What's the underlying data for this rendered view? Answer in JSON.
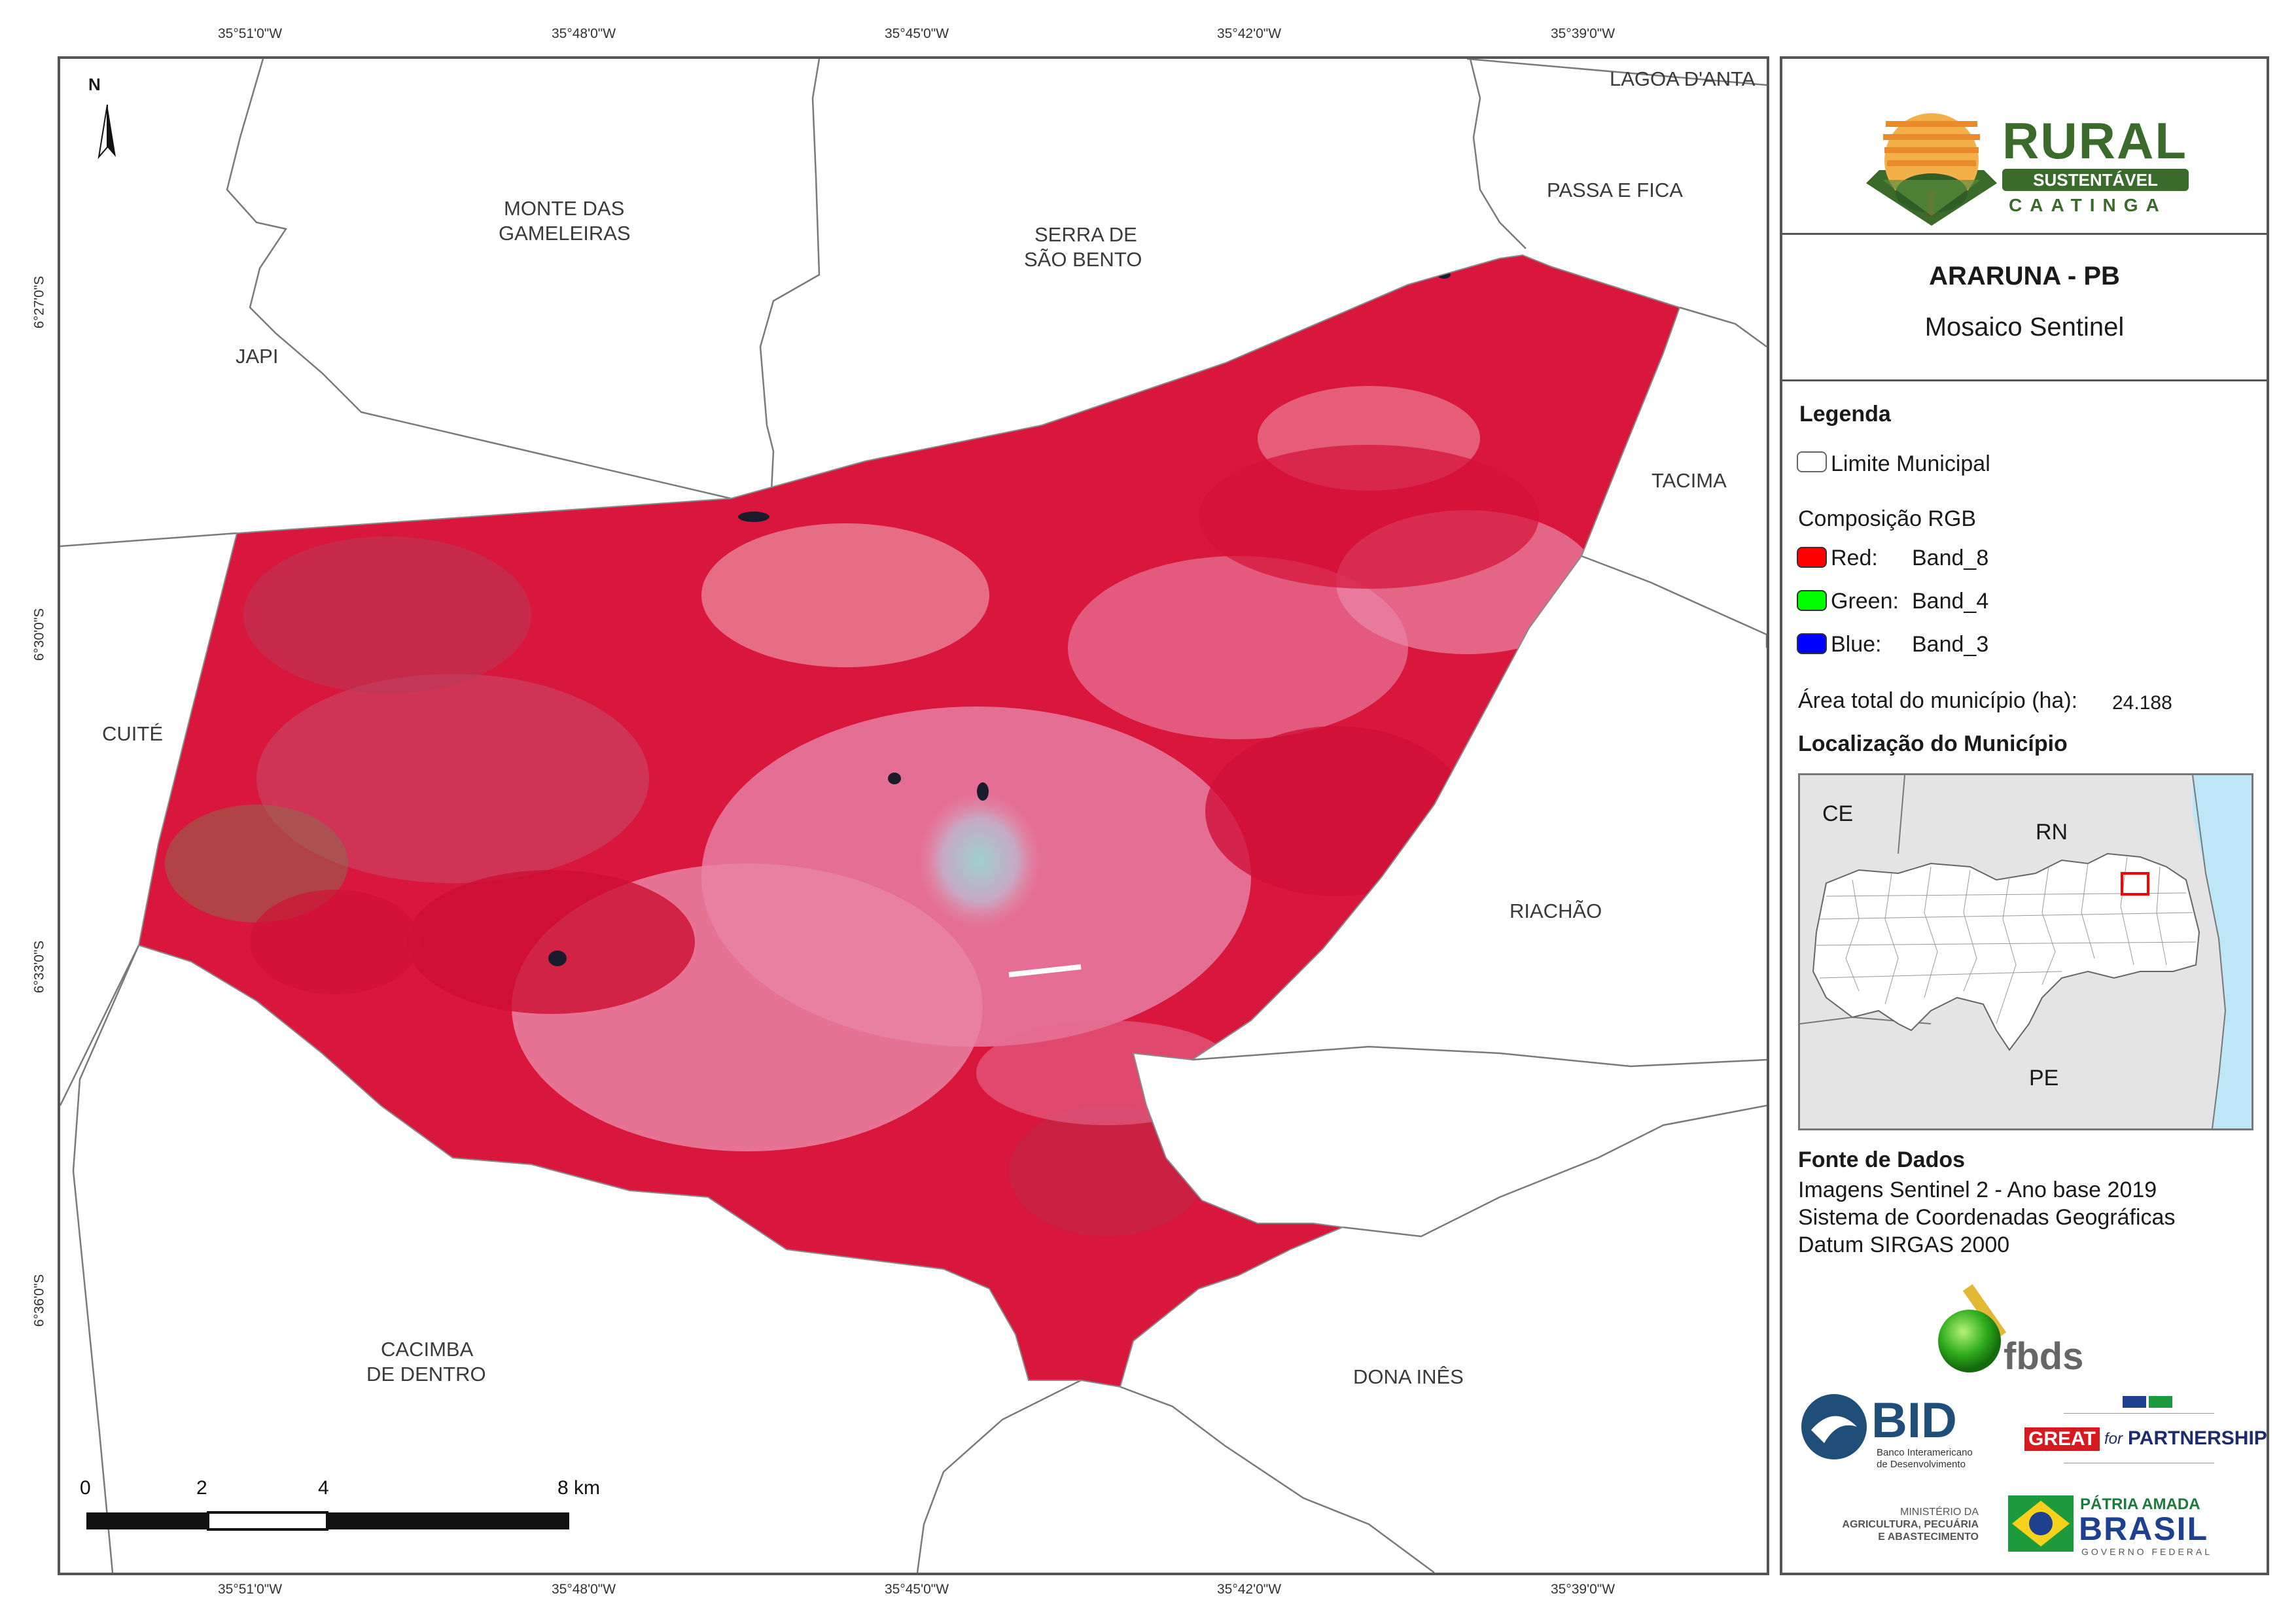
{
  "map": {
    "north_arrow_label": "N",
    "top_coords": [
      "35°51'0\"W",
      "35°48'0\"W",
      "35°45'0\"W",
      "35°42'0\"W",
      "35°39'0\"W"
    ],
    "bottom_coords": [
      "35°51'0\"W",
      "35°48'0\"W",
      "35°45'0\"W",
      "35°42'0\"W",
      "35°39'0\"W"
    ],
    "left_coords": [
      "6°27'0\"S",
      "6°30'0\"S",
      "6°33'0\"S",
      "6°36'0\"S"
    ],
    "municipalities": {
      "lagoa_danta": "LAGOA D'ANTA",
      "monte_das_gameleiras_1": "MONTE DAS",
      "monte_das_gameleiras_2": "GAMELEIRAS",
      "serra_de_sao_bento_1": "SERRA DE",
      "serra_de_sao_bento_2": "SÃO BENTO",
      "passa_e_fica": "PASSA E FICA",
      "japi": "JAPI",
      "tacima": "TACIMA",
      "cuite": "CUITÉ",
      "riachao": "RIACHÃO",
      "cacimba_de_dentro_1": "CACIMBA",
      "cacimba_de_dentro_2": "DE DENTRO",
      "dona_ines": "DONA INÊS"
    },
    "scale_bar": {
      "labels": [
        "0",
        "2",
        "4",
        "8 km"
      ]
    }
  },
  "panel": {
    "logo": {
      "line1": "RURAL",
      "line2": "SUSTENTÁVEL",
      "line3": "CAATINGA"
    },
    "title": "ARARUNA - PB",
    "subtitle": "Mosaico Sentinel",
    "legend": {
      "heading": "Legenda",
      "limit_label": "Limite Municipal",
      "composition_heading": "Composição RGB",
      "bands": [
        {
          "label": "Red:",
          "value": "Band_8",
          "color": "#ff0000"
        },
        {
          "label": "Green:",
          "value": "Band_4",
          "color": "#00ff00"
        },
        {
          "label": "Blue:",
          "value": "Band_3",
          "color": "#0000ff"
        }
      ],
      "area_label": "Área total do município (ha):",
      "area_value": "24.188"
    },
    "location": {
      "heading": "Localização do Município",
      "labels": {
        "ce": "CE",
        "rn": "RN",
        "pe": "PE"
      }
    },
    "sources": {
      "heading": "Fonte de Dados",
      "lines": [
        "Imagens Sentinel 2 - Ano base 2019",
        "Sistema de Coordenadas Geográficas",
        "Datum SIRGAS 2000"
      ]
    },
    "partners": {
      "fbds": "fbds",
      "bid": "BID",
      "bid_sub1": "Banco Interamericano",
      "bid_sub2": "de Desenvolvimento",
      "great_1": "GREAT",
      "great_2": "for",
      "great_3": "PARTNERSHIP",
      "ministerio_1": "MINISTÉRIO DA",
      "ministerio_2": "AGRICULTURA, PECUÁRIA",
      "ministerio_3": "E ABASTECIMENTO",
      "patria_1": "PÁTRIA AMADA",
      "patria_2": "BRASIL",
      "patria_3": "GOVERNO FEDERAL"
    }
  },
  "colors": {
    "vegetation_red": "#e0173c",
    "urban_pink": "#e88aa0",
    "urban_cyan": "#8fc6c0",
    "ocean_blue": "#bfe6f7",
    "state_grey": "#e4e4e4",
    "logo_green": "#3a6b2a",
    "logo_orange": "#e98a2b",
    "highlight_box": "#ff0000"
  }
}
